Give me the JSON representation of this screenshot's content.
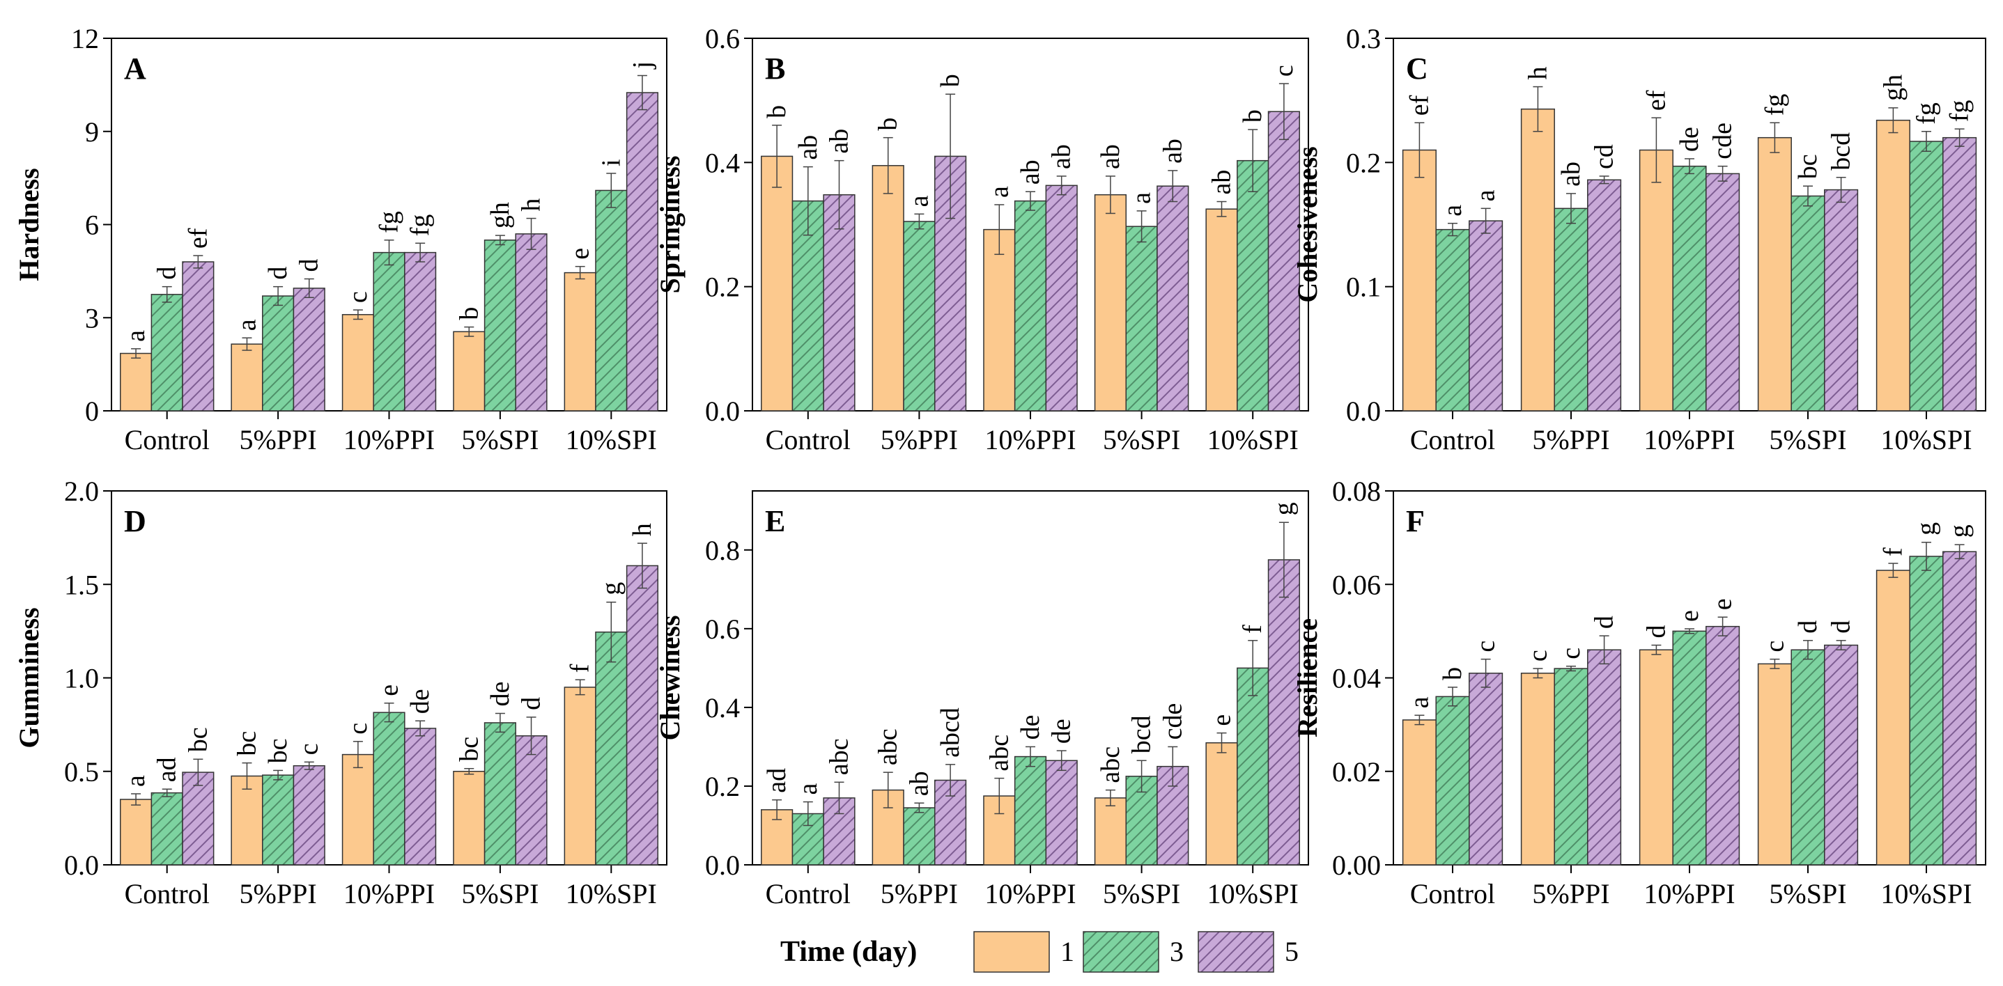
{
  "figure": {
    "legend": {
      "title": "Time (day)",
      "entries": [
        "1",
        "3",
        "5"
      ]
    },
    "series_colors": [
      "#fcc98e",
      "#7dd3a0",
      "#c8a9d8"
    ],
    "series_hatch": [
      "none",
      "diagonal",
      "diagonal"
    ],
    "edge_color": "#333333"
  },
  "chart_data": [
    {
      "type": "bar",
      "panel": "A",
      "ylabel": "Hardness",
      "categories": [
        "Control",
        "5%PPI",
        "10%PPI",
        "5%SPI",
        "10%SPI"
      ],
      "ylim": [
        0,
        12
      ],
      "yticks": [
        "0",
        "3",
        "6",
        "9",
        "12"
      ],
      "series": [
        {
          "name": "1",
          "values": [
            1.85,
            2.15,
            3.1,
            2.55,
            4.45
          ],
          "errors": [
            0.15,
            0.2,
            0.15,
            0.15,
            0.2
          ],
          "labels": [
            "a",
            "a",
            "c",
            "b",
            "e"
          ]
        },
        {
          "name": "3",
          "values": [
            3.75,
            3.7,
            5.1,
            5.5,
            7.1
          ],
          "errors": [
            0.25,
            0.3,
            0.4,
            0.15,
            0.55
          ],
          "labels": [
            "d",
            "d",
            "fg",
            "gh",
            "i"
          ]
        },
        {
          "name": "5",
          "values": [
            4.8,
            3.95,
            5.1,
            5.7,
            10.25
          ],
          "errors": [
            0.2,
            0.3,
            0.3,
            0.5,
            0.55
          ],
          "labels": [
            "ef",
            "d",
            "fg",
            "h",
            "j"
          ]
        }
      ]
    },
    {
      "type": "bar",
      "panel": "B",
      "ylabel": "Springiness",
      "categories": [
        "Control",
        "5%PPI",
        "10%PPI",
        "5%SPI",
        "10%SPI"
      ],
      "ylim": [
        0,
        0.6
      ],
      "yticks": [
        "0.0",
        "0.2",
        "0.4",
        "0.6"
      ],
      "series": [
        {
          "name": "1",
          "values": [
            0.41,
            0.395,
            0.292,
            0.348,
            0.325
          ],
          "errors": [
            0.05,
            0.045,
            0.04,
            0.03,
            0.012
          ],
          "labels": [
            "b",
            "b",
            "a",
            "ab",
            "ab"
          ]
        },
        {
          "name": "3",
          "values": [
            0.338,
            0.305,
            0.338,
            0.297,
            0.403
          ],
          "errors": [
            0.055,
            0.012,
            0.015,
            0.025,
            0.05
          ],
          "labels": [
            "ab",
            "a",
            "ab",
            "a",
            "b"
          ]
        },
        {
          "name": "5",
          "values": [
            0.348,
            0.41,
            0.363,
            0.362,
            0.482
          ],
          "errors": [
            0.055,
            0.1,
            0.015,
            0.025,
            0.045
          ],
          "labels": [
            "ab",
            "b",
            "ab",
            "ab",
            "c"
          ]
        }
      ]
    },
    {
      "type": "bar",
      "panel": "C",
      "ylabel": "Cohesiveness",
      "categories": [
        "Control",
        "5%PPI",
        "10%PPI",
        "5%SPI",
        "10%SPI"
      ],
      "ylim": [
        0,
        0.3
      ],
      "yticks": [
        "0.0",
        "0.1",
        "0.2",
        "0.3"
      ],
      "series": [
        {
          "name": "1",
          "values": [
            0.21,
            0.243,
            0.21,
            0.22,
            0.234
          ],
          "errors": [
            0.022,
            0.018,
            0.026,
            0.012,
            0.01
          ],
          "labels": [
            "ef",
            "h",
            "ef",
            "fg",
            "gh"
          ]
        },
        {
          "name": "3",
          "values": [
            0.146,
            0.163,
            0.197,
            0.173,
            0.217
          ],
          "errors": [
            0.005,
            0.012,
            0.006,
            0.008,
            0.008
          ],
          "labels": [
            "a",
            "ab",
            "de",
            "bc",
            "fg"
          ]
        },
        {
          "name": "5",
          "values": [
            0.153,
            0.186,
            0.191,
            0.178,
            0.22
          ],
          "errors": [
            0.01,
            0.003,
            0.006,
            0.01,
            0.007
          ],
          "labels": [
            "a",
            "cd",
            "cde",
            "bcd",
            "fg"
          ]
        }
      ]
    },
    {
      "type": "bar",
      "panel": "D",
      "ylabel": "Gumminess",
      "categories": [
        "Control",
        "5%PPI",
        "10%PPI",
        "5%SPI",
        "10%SPI"
      ],
      "ylim": [
        0,
        2.0
      ],
      "yticks": [
        "0.0",
        "0.5",
        "1.0",
        "1.5",
        "2.0"
      ],
      "series": [
        {
          "name": "1",
          "values": [
            0.35,
            0.475,
            0.59,
            0.5,
            0.95
          ],
          "errors": [
            0.03,
            0.07,
            0.07,
            0.015,
            0.04
          ],
          "labels": [
            "a",
            "bc",
            "c",
            "bc",
            "f"
          ]
        },
        {
          "name": "3",
          "values": [
            0.385,
            0.48,
            0.815,
            0.76,
            1.245
          ],
          "errors": [
            0.02,
            0.025,
            0.05,
            0.05,
            0.16
          ],
          "labels": [
            "ad",
            "bc",
            "e",
            "de",
            "g"
          ]
        },
        {
          "name": "5",
          "values": [
            0.495,
            0.53,
            0.73,
            0.69,
            1.6
          ],
          "errors": [
            0.07,
            0.02,
            0.04,
            0.1,
            0.12
          ],
          "labels": [
            "bc",
            "c",
            "de",
            "d",
            "h"
          ]
        }
      ]
    },
    {
      "type": "bar",
      "panel": "E",
      "ylabel": "Chewiness",
      "categories": [
        "Control",
        "5%PPI",
        "10%PPI",
        "5%SPI",
        "10%SPI"
      ],
      "ylim": [
        0,
        0.95
      ],
      "yticks": [
        "0.0",
        "0.2",
        "0.4",
        "0.6",
        "0.8"
      ],
      "series": [
        {
          "name": "1",
          "values": [
            0.14,
            0.19,
            0.175,
            0.17,
            0.31
          ],
          "errors": [
            0.025,
            0.045,
            0.045,
            0.02,
            0.025
          ],
          "labels": [
            "ad",
            "abc",
            "abc",
            "abc",
            "e"
          ]
        },
        {
          "name": "3",
          "values": [
            0.13,
            0.145,
            0.275,
            0.225,
            0.5
          ],
          "errors": [
            0.03,
            0.012,
            0.025,
            0.04,
            0.07
          ],
          "labels": [
            "a",
            "ab",
            "de",
            "bcd",
            "f"
          ]
        },
        {
          "name": "5",
          "values": [
            0.17,
            0.215,
            0.265,
            0.25,
            0.775
          ],
          "errors": [
            0.04,
            0.04,
            0.025,
            0.05,
            0.095
          ],
          "labels": [
            "abc",
            "abcd",
            "de",
            "cde",
            "g"
          ]
        }
      ]
    },
    {
      "type": "bar",
      "panel": "F",
      "ylabel": "Resilience",
      "categories": [
        "Control",
        "5%PPI",
        "10%PPI",
        "5%SPI",
        "10%SPI"
      ],
      "ylim": [
        0,
        0.08
      ],
      "yticks": [
        "0.00",
        "0.02",
        "0.04",
        "0.06",
        "0.08"
      ],
      "series": [
        {
          "name": "1",
          "values": [
            0.031,
            0.041,
            0.046,
            0.043,
            0.063
          ],
          "errors": [
            0.001,
            0.001,
            0.001,
            0.001,
            0.0015
          ],
          "labels": [
            "a",
            "c",
            "d",
            "c",
            "f"
          ]
        },
        {
          "name": "3",
          "values": [
            0.036,
            0.042,
            0.05,
            0.046,
            0.066
          ],
          "errors": [
            0.002,
            0.0005,
            0.0005,
            0.002,
            0.003
          ],
          "labels": [
            "b",
            "c",
            "e",
            "d",
            "g"
          ]
        },
        {
          "name": "5",
          "values": [
            0.041,
            0.046,
            0.051,
            0.047,
            0.067
          ],
          "errors": [
            0.003,
            0.003,
            0.002,
            0.001,
            0.0015
          ],
          "labels": [
            "c",
            "d",
            "e",
            "d",
            "g"
          ]
        }
      ]
    }
  ]
}
